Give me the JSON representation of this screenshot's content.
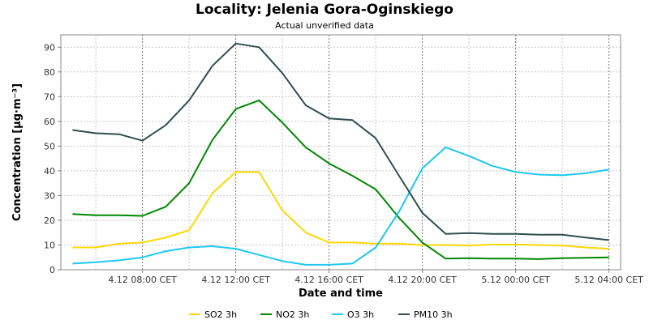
{
  "chart_data": {
    "type": "line",
    "title": "Locality: Jelenia Gora-Oginskiego",
    "subtitle": "Actual unverified data",
    "xlabel": "Date and time",
    "ylabel": "Concentration [µg·m⁻³]",
    "ylim": [
      0,
      95
    ],
    "yticks": [
      0,
      10,
      20,
      30,
      40,
      50,
      60,
      70,
      80,
      90
    ],
    "x_hours": [
      5,
      6,
      7,
      8,
      9,
      10,
      11,
      12,
      13,
      14,
      15,
      16,
      17,
      18,
      19,
      20,
      21,
      22,
      23,
      24,
      25,
      26,
      27,
      28
    ],
    "xlim_hours": [
      4.5,
      28.5
    ],
    "x_ticks": [
      {
        "hour": 8,
        "label": "4.12 08:00 CET"
      },
      {
        "hour": 12,
        "label": "4.12 12:00 CET"
      },
      {
        "hour": 16,
        "label": "4.12 16:00 CET"
      },
      {
        "hour": 20,
        "label": "4.12 20:00 CET"
      },
      {
        "hour": 24,
        "label": "5.12 00:00 CET"
      },
      {
        "hour": 28,
        "label": "5.12 04:00 CET"
      }
    ],
    "x_minor_gridlines_hours": [
      6,
      10,
      14,
      18,
      22,
      26
    ],
    "grid": true,
    "legend_position": "bottom",
    "series": [
      {
        "name": "SO2 3h",
        "color": "#ffd700",
        "values": [
          9.0,
          9.0,
          10.5,
          11.0,
          13.0,
          16.0,
          31.0,
          39.5,
          39.5,
          24.0,
          15.0,
          11.0,
          11.0,
          10.5,
          10.5,
          10.0,
          10.0,
          9.8,
          10.2,
          10.2,
          10.0,
          9.8,
          9.0,
          8.5
        ]
      },
      {
        "name": "NO2 3h",
        "color": "#008800",
        "values": [
          22.5,
          22.0,
          22.0,
          21.8,
          25.5,
          35.0,
          52.5,
          65.0,
          68.5,
          59.5,
          49.5,
          43.0,
          38.0,
          32.5,
          21.0,
          11.0,
          4.5,
          4.7,
          4.5,
          4.5,
          4.3,
          4.7,
          4.8,
          5.0
        ]
      },
      {
        "name": "O3 3h",
        "color": "#1ec8f0",
        "values": [
          2.5,
          3.0,
          3.8,
          5.0,
          7.5,
          9.0,
          9.5,
          8.5,
          6.0,
          3.5,
          2.0,
          2.0,
          2.5,
          9.0,
          23.5,
          41.0,
          49.5,
          46.0,
          42.0,
          39.5,
          38.5,
          38.2,
          39.0,
          40.5
        ]
      },
      {
        "name": "PM10 3h",
        "color": "#2f4f4f",
        "values": [
          56.5,
          55.2,
          54.8,
          52.2,
          58.5,
          68.5,
          82.5,
          91.5,
          90.0,
          79.5,
          66.5,
          61.2,
          60.5,
          53.2,
          38.0,
          23.0,
          14.5,
          14.8,
          14.5,
          14.5,
          14.2,
          14.2,
          13.0,
          12.0
        ]
      }
    ]
  }
}
